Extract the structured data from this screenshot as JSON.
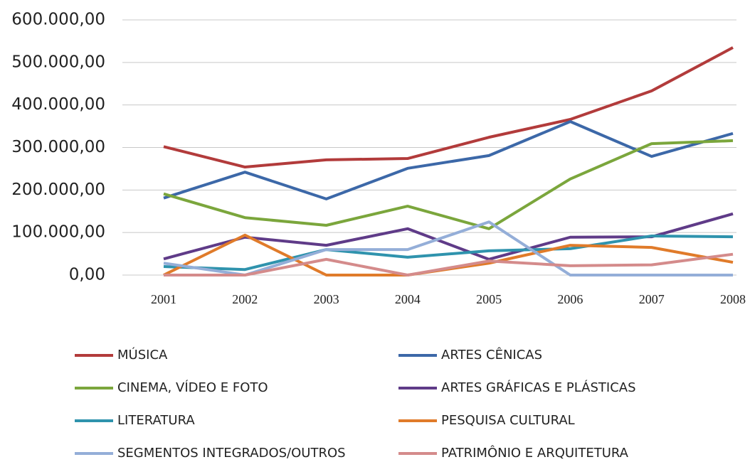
{
  "chart_data": {
    "type": "line",
    "categories": [
      "2001",
      "2002",
      "2003",
      "2004",
      "2005",
      "2006",
      "2007",
      "2008"
    ],
    "series": [
      {
        "name": "MÚSICA",
        "color": "#b23b3b",
        "values": [
          302000,
          254000,
          271000,
          274000,
          324000,
          366000,
          433000,
          535000
        ]
      },
      {
        "name": "ARTES CÊNICAS",
        "color": "#3c68a8",
        "values": [
          181000,
          242000,
          179000,
          251000,
          281000,
          361000,
          279000,
          333000
        ]
      },
      {
        "name": "CINEMA, VÍDEO E FOTO",
        "color": "#7ba63c",
        "values": [
          191000,
          135000,
          117000,
          162000,
          109000,
          226000,
          309000,
          316000
        ]
      },
      {
        "name": "ARTES GRÁFICAS E PLÁSTICAS",
        "color": "#5f3b88",
        "values": [
          38000,
          89000,
          70000,
          109000,
          37000,
          89000,
          90000,
          144000
        ]
      },
      {
        "name": "LITERATURA",
        "color": "#2f93ad",
        "values": [
          20000,
          13000,
          60000,
          42000,
          57000,
          62000,
          92000,
          90000
        ]
      },
      {
        "name": "PESQUISA CULTURAL",
        "color": "#e07b2a",
        "values": [
          0,
          94000,
          0,
          0,
          28000,
          70000,
          65000,
          30000
        ]
      },
      {
        "name": "SEGMENTOS INTEGRADOS/OUTROS",
        "color": "#94aed8",
        "values": [
          28000,
          0,
          60000,
          60000,
          125000,
          0,
          0,
          0
        ]
      },
      {
        "name": "PATRIMÔNIO E ARQUITETURA",
        "color": "#d48b8b",
        "values": [
          0,
          0,
          37000,
          0,
          33000,
          22000,
          24000,
          49000
        ]
      }
    ],
    "ylim": [
      0,
      600000
    ],
    "yticks": [
      {
        "value": 0,
        "label": "0,00"
      },
      {
        "value": 100000,
        "label": "100.000,00"
      },
      {
        "value": 200000,
        "label": "200.000,00"
      },
      {
        "value": 300000,
        "label": "300.000,00"
      },
      {
        "value": 400000,
        "label": "400.000,00"
      },
      {
        "value": 500000,
        "label": "500.000,00"
      },
      {
        "value": 600000,
        "label": "600.000,00"
      }
    ],
    "grid": true
  }
}
